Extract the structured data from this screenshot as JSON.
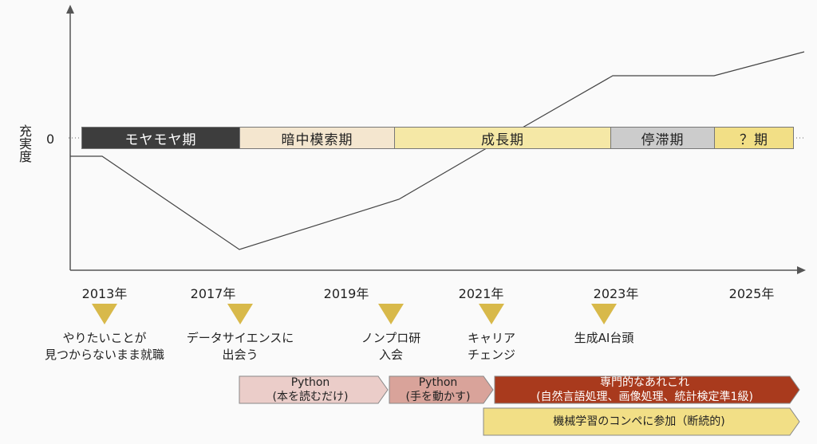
{
  "y_axis_label": "充実度",
  "zero_label": "0",
  "phases": [
    {
      "label": "モヤモヤ期",
      "color": "#3d3d3d",
      "text_color": "#ffffff"
    },
    {
      "label": "暗中模索期",
      "color": "#f4e6cf",
      "text_color": "#222222"
    },
    {
      "label": "成長期",
      "color": "#f5e8a6",
      "text_color": "#222222"
    },
    {
      "label": "停滞期",
      "color": "#cccccc",
      "text_color": "#222222"
    },
    {
      "label": "？期",
      "color": "#f2df86",
      "text_color": "#222222"
    }
  ],
  "years": [
    "2013年",
    "2017年",
    "2019年",
    "2021年",
    "2023年",
    "2025年"
  ],
  "events": [
    {
      "lines": [
        "やりたいことが",
        "見つからないまま就職"
      ]
    },
    {
      "lines": [
        "データサイエンスに",
        "出会う"
      ]
    },
    {
      "lines": [
        "ノンプロ研",
        "入会"
      ]
    },
    {
      "lines": [
        "キャリア",
        "チェンジ"
      ]
    },
    {
      "lines": [
        "生成AI台頭"
      ]
    }
  ],
  "activities": [
    {
      "line1": "Python",
      "line2": "(本を読むだけ)",
      "color": "#ebcdc9",
      "text_color": "#222222"
    },
    {
      "line1": "Python",
      "line2": "(手を動かす)",
      "color": "#d9a39a",
      "text_color": "#222222"
    },
    {
      "line1": "専門的なあれこれ",
      "line2": "(自然言語処理、画像処理、統計検定準1級)",
      "color": "#a93a1d",
      "text_color": "#ffffff"
    },
    {
      "line1": "機械学習のコンペに参加（断続的)",
      "line2": "",
      "color": "#f2df86",
      "text_color": "#222222"
    }
  ],
  "colors": {
    "axis": "#555555",
    "curve": "#444444",
    "marker": "#d8b94a"
  }
}
